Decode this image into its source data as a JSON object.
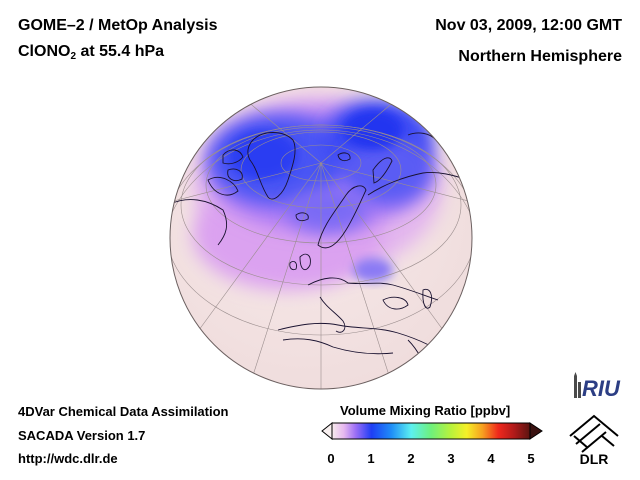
{
  "header": {
    "title_line1": "GOME–2 / MetOp Analysis",
    "species": "ClONO",
    "species_sub": "2",
    "level": " at 55.4 hPa",
    "date": "Nov 03, 2009, 12:00 GMT",
    "region": "Northern Hemisphere"
  },
  "footer": {
    "line1": "4DVar Chemical Data Assimilation",
    "line2": "SACADA Version 1.7",
    "line3": "http://wdc.dlr.de"
  },
  "colorbar": {
    "title": "Volume Mixing Ratio [ppbv]",
    "ticks": [
      "0",
      "1",
      "2",
      "3",
      "4",
      "5"
    ],
    "range": [
      0,
      5
    ]
  },
  "logos": {
    "riu": "RIU",
    "dlr": "DLR"
  },
  "colors": {
    "low": "#fbf0ee",
    "mid_pink": "#dca0f2",
    "high_blue": "#2a3cf2",
    "ocean_bg": "#f5e6e6"
  }
}
